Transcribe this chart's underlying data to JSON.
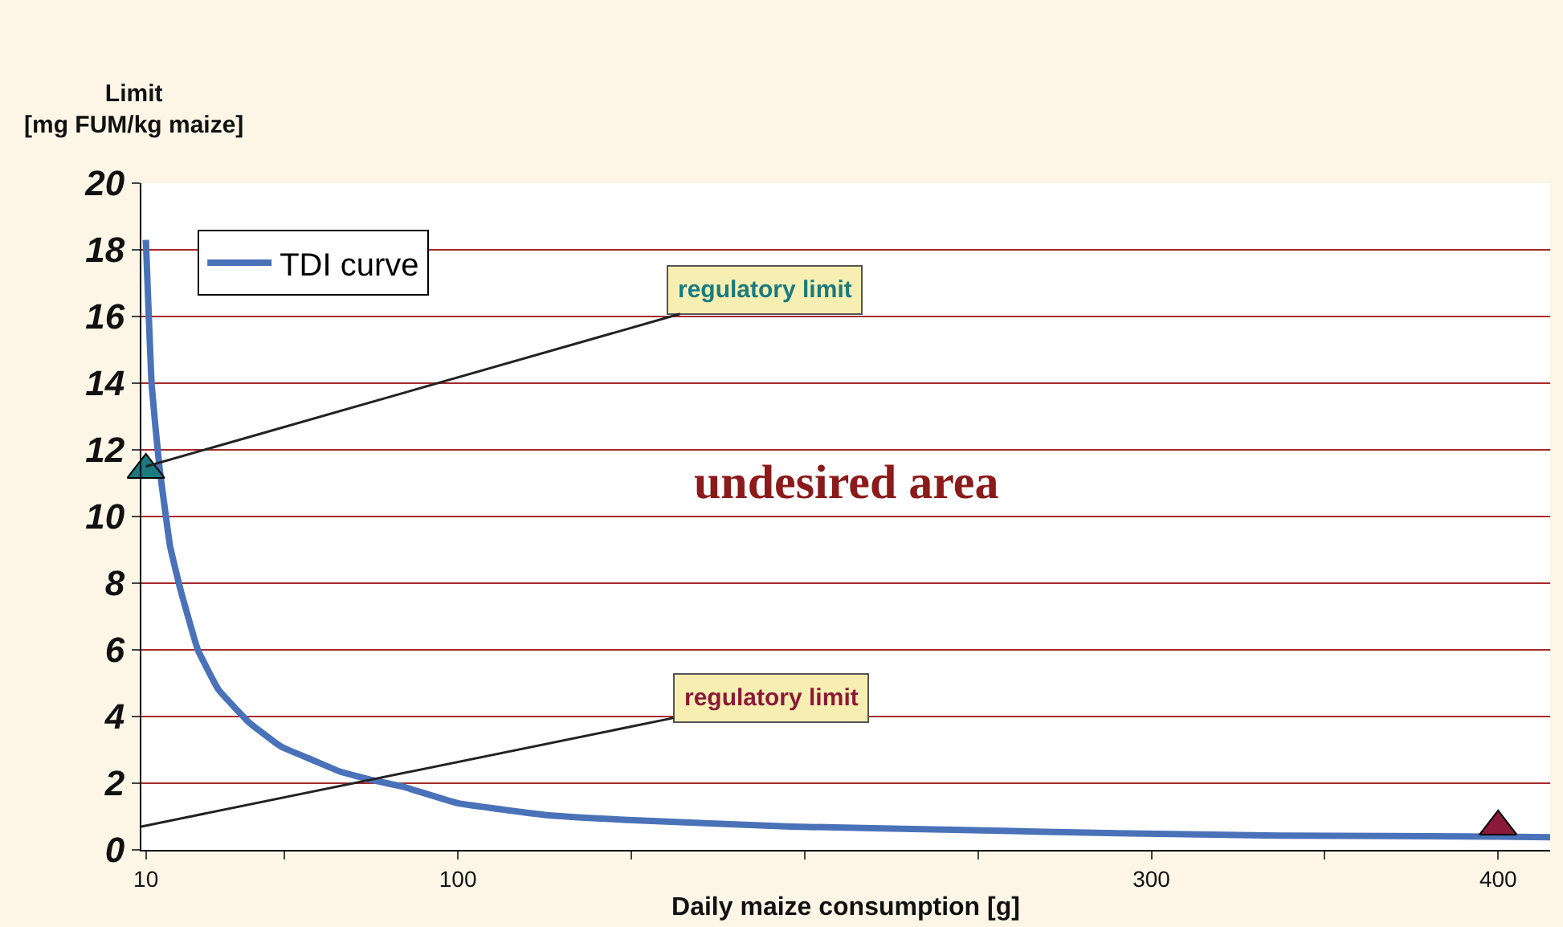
{
  "chart_data": {
    "type": "line",
    "xlabel": "Daily maize consumption [g]",
    "ylabel": "Limit\n[mg FUM/kg maize]",
    "xlim": [
      8.7,
      415
    ],
    "xticks": [
      10,
      {
        "value": 50,
        "label": null
      },
      100,
      {
        "value": 150,
        "label": null
      },
      {
        "value": 200,
        "label": null
      },
      {
        "value": 250,
        "label": null
      },
      300,
      {
        "value": 350,
        "label": null
      },
      400
    ],
    "ylim": [
      0,
      20
    ],
    "yticks": [
      0,
      2,
      4,
      6,
      8,
      10,
      12,
      14,
      16,
      18,
      20
    ],
    "grid": "y",
    "legend": "top left",
    "series": [
      {
        "name": "TDI curve",
        "color": "#4a72b8",
        "marker": "none",
        "x": [
          10,
          11.7,
          13.9,
          17,
          20,
          25,
          31,
          40,
          49,
          58,
          66,
          75,
          84,
          100,
          125,
          149,
          196,
          243,
          290,
          337,
          400,
          415
        ],
        "values": [
          18.3,
          13.9,
          11.5,
          9.1,
          7.8,
          6.0,
          4.8,
          3.8,
          3.1,
          2.7,
          2.35,
          2.1,
          1.9,
          1.4,
          1.05,
          0.9,
          0.7,
          0.6,
          0.5,
          0.43,
          0.4,
          0.38
        ]
      },
      {
        "type": "scatter",
        "color": "#1a7a80",
        "marker": "triangle",
        "x": [
          10
        ],
        "values": [
          11.4
        ]
      },
      {
        "type": "scatter",
        "color": "#8b1a3a",
        "marker": "triangle",
        "x": [
          400
        ],
        "values": [
          0.7
        ]
      }
    ],
    "annotations": [
      {
        "text": "regulatory limit",
        "x": 10,
        "y": 11.5
      },
      "regulatory limit",
      "undesired area"
    ]
  }
}
